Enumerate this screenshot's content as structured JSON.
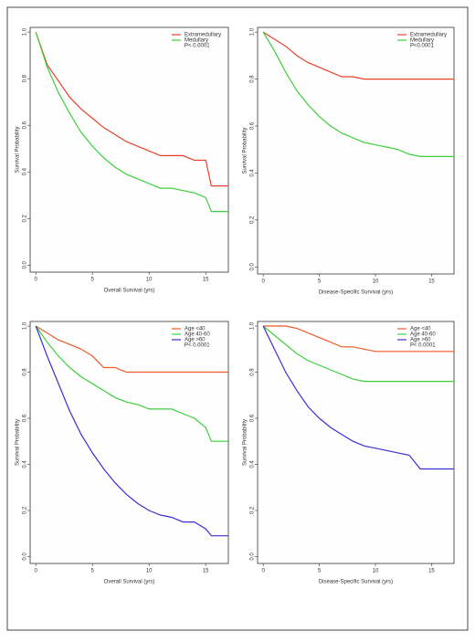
{
  "chart_data": [
    {
      "type": "line",
      "x_label": "Overall Survival (yrs)",
      "y_label": "Survival Probability",
      "annotation": "P< 0.0001",
      "x": [
        0,
        1,
        2,
        3,
        4,
        5,
        6,
        7,
        8,
        9,
        10,
        11,
        12,
        13,
        14,
        15,
        15.5,
        17
      ],
      "series": [
        {
          "name": "Extramedullary",
          "color": "#e8412c",
          "values": [
            1,
            0.86,
            0.79,
            0.72,
            0.67,
            0.63,
            0.59,
            0.56,
            0.53,
            0.51,
            0.49,
            0.47,
            0.47,
            0.47,
            0.45,
            0.45,
            0.34,
            0.34
          ]
        },
        {
          "name": "Medullary",
          "color": "#3ccf3c",
          "values": [
            1,
            0.85,
            0.74,
            0.65,
            0.57,
            0.51,
            0.46,
            0.42,
            0.39,
            0.37,
            0.35,
            0.33,
            0.33,
            0.32,
            0.31,
            0.29,
            0.23,
            0.23
          ]
        }
      ],
      "xlim": [
        -0.5,
        17
      ],
      "ylim": [
        -0.03,
        1.02
      ],
      "xticks": [
        0,
        5,
        10,
        15
      ],
      "yticks": [
        {
          "value": 0,
          "label": "0.0"
        },
        0.2,
        0.4,
        0.6,
        0.8,
        {
          "value": 1,
          "label": "1.0"
        }
      ]
    },
    {
      "type": "line",
      "x_label": "Disease-Specific Survival (yrs)",
      "y_label": "Survival Probability",
      "annotation": "P<0.0001",
      "x": [
        0,
        1,
        2,
        3,
        4,
        5,
        6,
        7,
        8,
        9,
        10,
        11,
        12,
        13,
        14,
        15,
        15.5,
        17
      ],
      "series": [
        {
          "name": "Extramedullary",
          "color": "#e8412c",
          "values": [
            1,
            0.97,
            0.94,
            0.9,
            0.87,
            0.85,
            0.83,
            0.81,
            0.81,
            0.8,
            0.8,
            0.8,
            0.8,
            0.8,
            0.8,
            0.8,
            0.8,
            0.8
          ]
        },
        {
          "name": "Medullary",
          "color": "#3ccf3c",
          "values": [
            1,
            0.92,
            0.83,
            0.75,
            0.69,
            0.64,
            0.6,
            0.57,
            0.55,
            0.53,
            0.52,
            0.51,
            0.5,
            0.48,
            0.47,
            0.47,
            0.47,
            0.47
          ]
        }
      ],
      "xlim": [
        -0.5,
        17
      ],
      "ylim": [
        -0.03,
        1.02
      ],
      "xticks": [
        0,
        5,
        10,
        15
      ],
      "yticks": [
        {
          "value": 0,
          "label": "0.0"
        },
        0.2,
        0.4,
        0.6,
        0.8,
        {
          "value": 1,
          "label": "1.0"
        }
      ]
    },
    {
      "type": "line",
      "x_label": "Overall Survival (yrs)",
      "y_label": "Survival Probability",
      "annotation": "P< 0.0001",
      "x": [
        0,
        1,
        2,
        3,
        4,
        5,
        6,
        7,
        8,
        9,
        10,
        11,
        12,
        13,
        14,
        15,
        15.5,
        17
      ],
      "series": [
        {
          "name": "Age <40",
          "color": "#f05a28",
          "values": [
            1,
            0.97,
            0.94,
            0.92,
            0.9,
            0.87,
            0.82,
            0.82,
            0.8,
            0.8,
            0.8,
            0.8,
            0.8,
            0.8,
            0.8,
            0.8,
            0.8,
            0.8
          ]
        },
        {
          "name": "Age 40-60",
          "color": "#3ccf3c",
          "values": [
            1,
            0.93,
            0.87,
            0.82,
            0.78,
            0.75,
            0.72,
            0.69,
            0.67,
            0.66,
            0.64,
            0.64,
            0.64,
            0.62,
            0.6,
            0.56,
            0.5,
            0.5
          ]
        },
        {
          "name": "Age >60",
          "color": "#3a2fd0",
          "values": [
            1,
            0.87,
            0.75,
            0.63,
            0.53,
            0.45,
            0.38,
            0.32,
            0.27,
            0.23,
            0.2,
            0.18,
            0.17,
            0.15,
            0.15,
            0.12,
            0.09,
            0.09
          ]
        }
      ],
      "xlim": [
        -0.5,
        17
      ],
      "ylim": [
        -0.03,
        1.02
      ],
      "xticks": [
        0,
        5,
        10,
        15
      ],
      "yticks": [
        {
          "value": 0,
          "label": "0.0"
        },
        0.2,
        0.4,
        0.6,
        0.8,
        {
          "value": 1,
          "label": "1.0"
        }
      ]
    },
    {
      "type": "line",
      "x_label": "Disease-Specific Survival (yrs)",
      "y_label": "Survival Probability",
      "annotation": "P< 0.0001",
      "x": [
        0,
        1,
        2,
        3,
        4,
        5,
        6,
        7,
        8,
        9,
        10,
        11,
        12,
        13,
        14,
        15,
        15.5,
        17
      ],
      "series": [
        {
          "name": "Age <40",
          "color": "#f05a28",
          "values": [
            1,
            1,
            1,
            0.99,
            0.97,
            0.95,
            0.93,
            0.91,
            0.91,
            0.9,
            0.89,
            0.89,
            0.89,
            0.89,
            0.89,
            0.89,
            0.89,
            0.89
          ]
        },
        {
          "name": "Age 40-60",
          "color": "#3ccf3c",
          "values": [
            1,
            0.96,
            0.92,
            0.88,
            0.85,
            0.83,
            0.81,
            0.79,
            0.77,
            0.76,
            0.76,
            0.76,
            0.76,
            0.76,
            0.76,
            0.76,
            0.76,
            0.76
          ]
        },
        {
          "name": "Age >60",
          "color": "#3a2fd0",
          "values": [
            1,
            0.9,
            0.8,
            0.72,
            0.65,
            0.6,
            0.56,
            0.53,
            0.5,
            0.48,
            0.47,
            0.46,
            0.45,
            0.44,
            0.38,
            0.38,
            0.38,
            0.38
          ]
        }
      ],
      "xlim": [
        -0.5,
        17
      ],
      "ylim": [
        -0.03,
        1.02
      ],
      "xticks": [
        0,
        5,
        10,
        15
      ],
      "yticks": [
        {
          "value": 0,
          "label": "0.0"
        },
        0.2,
        0.4,
        0.6,
        0.8,
        {
          "value": 1,
          "label": "1.0"
        }
      ]
    }
  ]
}
